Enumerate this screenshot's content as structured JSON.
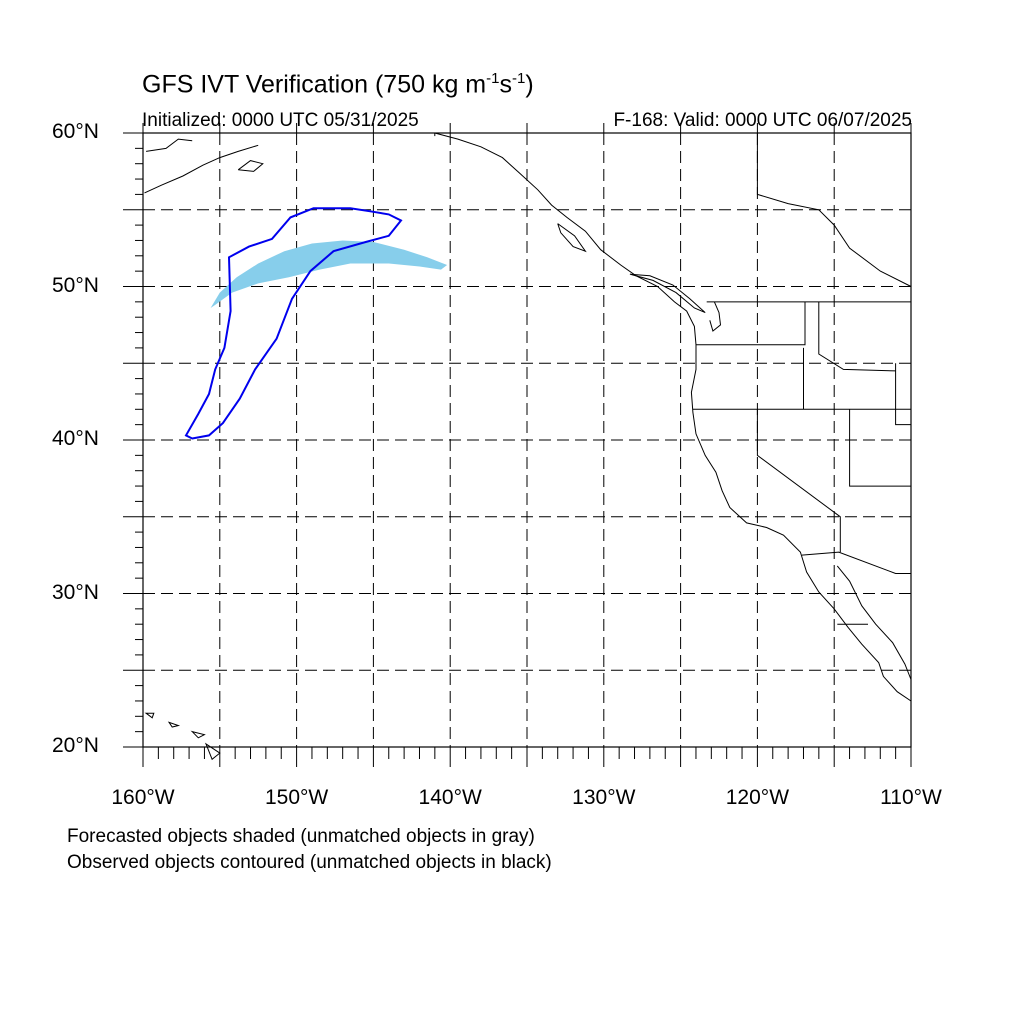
{
  "header": {
    "title_main": "GFS IVT Verification (750 kg m",
    "title_exp1": "-1",
    "title_mid": "s",
    "title_exp2": "-1",
    "title_end": ")",
    "initialized": "Initialized: 0000 UTC 05/31/2025",
    "valid": "F-168: Valid: 0000 UTC 06/07/2025"
  },
  "axes": {
    "lat_labels": [
      {
        "text": "60°N",
        "lat": 60
      },
      {
        "text": "50°N",
        "lat": 50
      },
      {
        "text": "40°N",
        "lat": 40
      },
      {
        "text": "30°N",
        "lat": 30
      },
      {
        "text": "20°N",
        "lat": 20
      }
    ],
    "lon_labels": [
      {
        "text": "160°W",
        "lon": -160
      },
      {
        "text": "150°W",
        "lon": -150
      },
      {
        "text": "140°W",
        "lon": -140
      },
      {
        "text": "130°W",
        "lon": -130
      },
      {
        "text": "120°W",
        "lon": -120
      },
      {
        "text": "110°W",
        "lon": -110
      }
    ],
    "lon_range": [
      -160,
      -110
    ],
    "lat_range": [
      20,
      60
    ],
    "gridline_step_deg": 5,
    "gridlines": "dashed"
  },
  "legend_notes": {
    "line1": "Forecasted objects shaded (unmatched objects in gray)",
    "line2": "Observed objects contoured (unmatched objects in black)"
  },
  "colors": {
    "forecast_fill": "#87ceeb",
    "observed_contour": "#0000ee",
    "coastline": "#000000",
    "grid": "#000000"
  },
  "forecast_object": {
    "color": "forecast_fill",
    "outline_lonlat": [
      [
        -155.6,
        48.6
      ],
      [
        -155.0,
        49.6
      ],
      [
        -153.9,
        50.6
      ],
      [
        -152.5,
        51.5
      ],
      [
        -150.8,
        52.3
      ],
      [
        -149.0,
        52.8
      ],
      [
        -147.0,
        53.0
      ],
      [
        -145.0,
        52.9
      ],
      [
        -143.0,
        52.4
      ],
      [
        -141.5,
        51.9
      ],
      [
        -140.2,
        51.4
      ],
      [
        -140.6,
        51.1
      ],
      [
        -142.0,
        51.3
      ],
      [
        -144.0,
        51.5
      ],
      [
        -146.5,
        51.5
      ],
      [
        -148.5,
        51.1
      ],
      [
        -150.5,
        50.6
      ],
      [
        -152.5,
        50.2
      ],
      [
        -154.2,
        49.6
      ],
      [
        -155.3,
        48.8
      ]
    ]
  },
  "observed_object": {
    "color": "observed_contour",
    "outline_lonlat": [
      [
        -156.8,
        40.1
      ],
      [
        -155.7,
        40.3
      ],
      [
        -154.8,
        41.1
      ],
      [
        -153.7,
        42.7
      ],
      [
        -152.7,
        44.6
      ],
      [
        -151.3,
        46.6
      ],
      [
        -150.3,
        49.2
      ],
      [
        -149.1,
        51.0
      ],
      [
        -147.6,
        52.3
      ],
      [
        -145.5,
        52.9
      ],
      [
        -144.0,
        53.3
      ],
      [
        -143.2,
        54.3
      ],
      [
        -144.0,
        54.7
      ],
      [
        -145.2,
        54.9
      ],
      [
        -146.5,
        55.1
      ],
      [
        -148.9,
        55.1
      ],
      [
        -150.4,
        54.5
      ],
      [
        -151.6,
        53.1
      ],
      [
        -153.1,
        52.6
      ],
      [
        -154.4,
        51.9
      ],
      [
        -154.3,
        48.4
      ],
      [
        -154.7,
        46.0
      ],
      [
        -155.3,
        44.6
      ],
      [
        -155.7,
        43.0
      ],
      [
        -156.4,
        41.7
      ],
      [
        -157.2,
        40.3
      ],
      [
        -156.8,
        40.1
      ]
    ]
  },
  "coastlines_lonlat": [
    [
      [
        -159.8,
        58.8
      ],
      [
        -158.5,
        59.0
      ],
      [
        -157.7,
        59.6
      ],
      [
        -156.8,
        59.5
      ]
    ],
    [
      [
        -159.9,
        56.1
      ],
      [
        -158.8,
        56.6
      ],
      [
        -157.4,
        57.2
      ],
      [
        -156.1,
        57.9
      ],
      [
        -155.0,
        58.4
      ],
      [
        -153.8,
        58.8
      ],
      [
        -152.5,
        59.2
      ]
    ],
    [
      [
        -153.8,
        57.6
      ],
      [
        -153.0,
        58.2
      ],
      [
        -152.2,
        58.0
      ],
      [
        -152.8,
        57.5
      ],
      [
        -153.8,
        57.6
      ]
    ],
    [
      [
        -141.0,
        60.0
      ],
      [
        -139.5,
        59.6
      ],
      [
        -138.0,
        59.1
      ],
      [
        -136.6,
        58.4
      ],
      [
        -135.5,
        57.4
      ],
      [
        -134.3,
        56.3
      ],
      [
        -133.4,
        55.3
      ],
      [
        -132.4,
        54.5
      ],
      [
        -131.2,
        53.6
      ],
      [
        -130.2,
        52.4
      ],
      [
        -128.9,
        51.4
      ],
      [
        -127.9,
        50.7
      ],
      [
        -126.5,
        50.0
      ],
      [
        -125.4,
        49.0
      ],
      [
        -124.6,
        48.4
      ],
      [
        -124.1,
        47.4
      ],
      [
        -124.0,
        46.2
      ],
      [
        -124.0,
        44.6
      ],
      [
        -124.3,
        43.1
      ],
      [
        -124.2,
        41.8
      ],
      [
        -124.0,
        40.4
      ],
      [
        -123.4,
        39.0
      ],
      [
        -122.7,
        37.9
      ],
      [
        -122.3,
        36.7
      ],
      [
        -121.8,
        35.6
      ],
      [
        -120.7,
        34.6
      ],
      [
        -119.4,
        34.3
      ],
      [
        -118.3,
        33.8
      ],
      [
        -117.2,
        32.7
      ],
      [
        -116.8,
        31.4
      ],
      [
        -116.0,
        30.1
      ],
      [
        -115.0,
        29.0
      ],
      [
        -114.1,
        27.8
      ],
      [
        -113.2,
        26.7
      ],
      [
        -112.1,
        25.5
      ],
      [
        -111.8,
        24.6
      ],
      [
        -110.9,
        23.6
      ],
      [
        -110.0,
        23.0
      ]
    ],
    [
      [
        -114.8,
        31.8
      ],
      [
        -114.0,
        30.8
      ],
      [
        -113.2,
        29.2
      ],
      [
        -112.3,
        28.0
      ],
      [
        -111.2,
        26.8
      ],
      [
        -110.4,
        25.4
      ],
      [
        -110.0,
        24.4
      ]
    ],
    [
      [
        -133.0,
        54.1
      ],
      [
        -131.9,
        53.3
      ],
      [
        -131.2,
        52.3
      ],
      [
        -132.0,
        52.6
      ],
      [
        -132.8,
        53.5
      ],
      [
        -133.0,
        54.1
      ]
    ],
    [
      [
        -128.3,
        50.8
      ],
      [
        -126.8,
        50.4
      ],
      [
        -125.3,
        49.6
      ],
      [
        -124.1,
        48.6
      ],
      [
        -123.4,
        48.3
      ],
      [
        -124.4,
        49.2
      ],
      [
        -125.5,
        50.1
      ],
      [
        -127.0,
        50.7
      ],
      [
        -128.3,
        50.8
      ]
    ],
    [
      [
        -122.8,
        49.0
      ],
      [
        -122.5,
        48.3
      ],
      [
        -122.4,
        47.5
      ],
      [
        -122.9,
        47.1
      ],
      [
        -123.1,
        47.8
      ]
    ]
  ],
  "borders_lonlat": [
    [
      [
        -141.0,
        60.0
      ],
      [
        -141.0,
        59.8
      ]
    ],
    [
      [
        -123.3,
        49.0
      ],
      [
        -110.0,
        49.0
      ]
    ],
    [
      [
        -124.0,
        46.2
      ],
      [
        -116.9,
        46.2
      ],
      [
        -116.9,
        49.0
      ]
    ],
    [
      [
        -124.2,
        42.0
      ],
      [
        -110.0,
        42.0
      ]
    ],
    [
      [
        -117.0,
        46.0
      ],
      [
        -117.0,
        42.0
      ]
    ],
    [
      [
        -120.0,
        42.0
      ],
      [
        -120.0,
        39.0
      ],
      [
        -114.6,
        35.0
      ],
      [
        -114.6,
        32.7
      ]
    ],
    [
      [
        -114.0,
        42.0
      ],
      [
        -114.0,
        37.0
      ],
      [
        -110.0,
        37.0
      ]
    ],
    [
      [
        -116.0,
        49.0
      ],
      [
        -116.0,
        45.6
      ],
      [
        -114.4,
        44.6
      ],
      [
        -111.0,
        44.5
      ]
    ],
    [
      [
        -111.0,
        45.0
      ],
      [
        -111.0,
        41.0
      ],
      [
        -110.0,
        41.0
      ]
    ],
    [
      [
        -117.1,
        32.5
      ],
      [
        -114.7,
        32.7
      ],
      [
        -111.0,
        31.3
      ],
      [
        -110.0,
        31.3
      ]
    ],
    [
      [
        -114.8,
        28.0
      ],
      [
        -112.8,
        28.0
      ]
    ],
    [
      [
        -120.0,
        60.0
      ],
      [
        -120.0,
        56.0
      ],
      [
        -118.0,
        55.4
      ],
      [
        -116.0,
        55.0
      ],
      [
        -115.0,
        54.0
      ],
      [
        -114.0,
        52.5
      ],
      [
        -112.0,
        51.0
      ],
      [
        -110.0,
        50.0
      ]
    ]
  ],
  "islands_lonlat": [
    [
      [
        -159.8,
        22.2
      ],
      [
        -159.3,
        22.2
      ],
      [
        -159.4,
        21.9
      ],
      [
        -159.8,
        22.2
      ]
    ],
    [
      [
        -158.3,
        21.6
      ],
      [
        -157.7,
        21.4
      ],
      [
        -158.1,
        21.3
      ],
      [
        -158.3,
        21.6
      ]
    ],
    [
      [
        -156.8,
        21.0
      ],
      [
        -156.0,
        20.8
      ],
      [
        -156.4,
        20.6
      ],
      [
        -156.8,
        21.0
      ]
    ],
    [
      [
        -155.9,
        20.2
      ],
      [
        -155.0,
        19.6
      ],
      [
        -155.5,
        19.2
      ],
      [
        -155.9,
        20.2
      ]
    ]
  ]
}
